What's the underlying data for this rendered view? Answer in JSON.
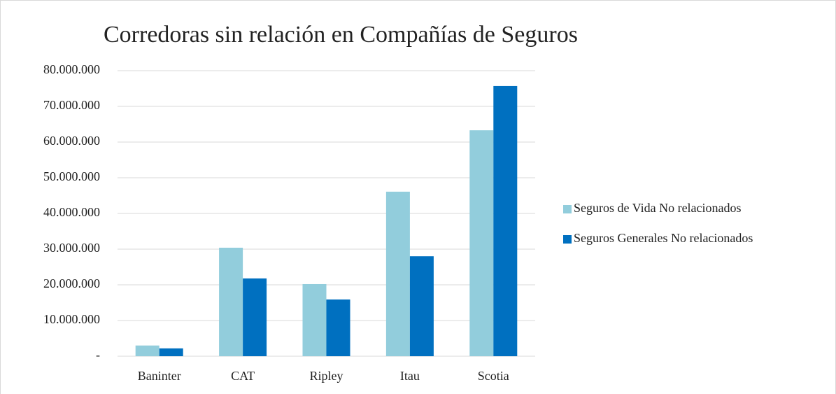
{
  "chart_data": {
    "type": "bar",
    "title": "Corredoras sin relación en Compañías de Seguros",
    "categories": [
      "Baninter",
      "CAT",
      "Ripley",
      "Itau",
      "Scotia"
    ],
    "series": [
      {
        "name": "Seguros de Vida No relacionados",
        "color": "#92cddc",
        "values": [
          3000000,
          30400000,
          20200000,
          46100000,
          63300000
        ]
      },
      {
        "name": "Seguros Generales No relacionados",
        "color": "#0070c0",
        "values": [
          2200000,
          21800000,
          15900000,
          28000000,
          75700000
        ]
      }
    ],
    "ylim": [
      0,
      80000000
    ],
    "yticks": [
      {
        "value": 0,
        "label": "-"
      },
      {
        "value": 10000000,
        "label": "10.000.000"
      },
      {
        "value": 20000000,
        "label": "20.000.000"
      },
      {
        "value": 30000000,
        "label": "30.000.000"
      },
      {
        "value": 40000000,
        "label": "40.000.000"
      },
      {
        "value": 50000000,
        "label": "50.000.000"
      },
      {
        "value": 60000000,
        "label": "60.000.000"
      },
      {
        "value": 70000000,
        "label": "70.000.000"
      },
      {
        "value": 80000000,
        "label": "80.000.000"
      }
    ],
    "grid": true,
    "legend": "right"
  }
}
